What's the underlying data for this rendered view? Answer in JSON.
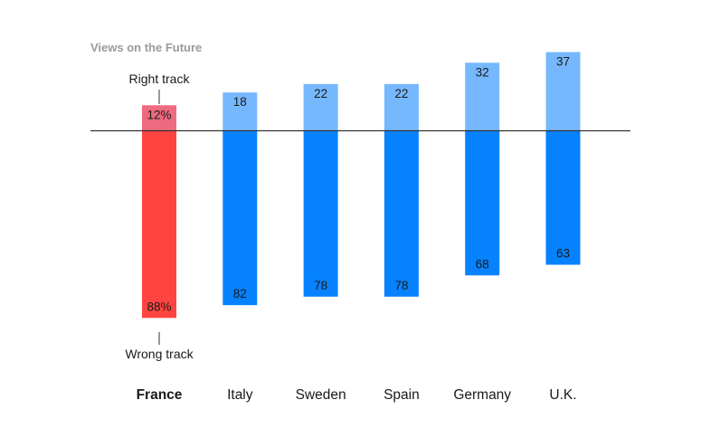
{
  "chart_data": {
    "type": "bar",
    "title": "Views on the Future",
    "categories": [
      "France",
      "Italy",
      "Sweden",
      "Spain",
      "Germany",
      "U.K."
    ],
    "highlight_category": "France",
    "series": [
      {
        "name": "Right track",
        "values": [
          12,
          18,
          22,
          22,
          32,
          37
        ],
        "labels": [
          "12%",
          "18",
          "22",
          "22",
          "32",
          "37"
        ],
        "direction": "up",
        "color": "#76b8fd",
        "highlight_color": "#ee6a7e"
      },
      {
        "name": "Wrong track",
        "values": [
          88,
          82,
          78,
          78,
          68,
          63
        ],
        "labels": [
          "88%",
          "82",
          "78",
          "78",
          "68",
          "63"
        ],
        "direction": "down",
        "color": "#0682fe",
        "highlight_color": "#fe4440"
      }
    ],
    "annotations": {
      "up_label": "Right track",
      "down_label": "Wrong track"
    },
    "baseline_color": "#333333",
    "xlabel": "",
    "ylabel": ""
  }
}
